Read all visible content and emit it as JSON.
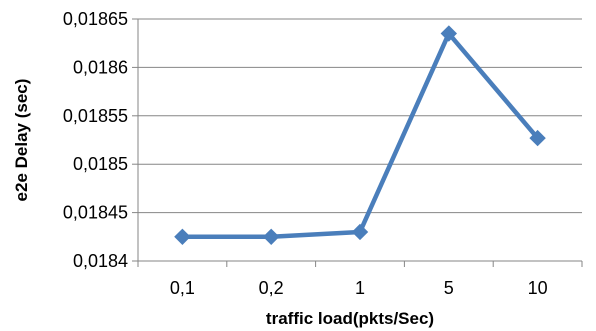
{
  "chart_data": {
    "type": "line",
    "title": "",
    "xlabel": "traffic load(pkts/Sec)",
    "ylabel": "e2e Delay (sec)",
    "categories": [
      "0,1",
      "0,2",
      "1",
      "5",
      "10"
    ],
    "series": [
      {
        "values": [
          0.018425,
          0.018425,
          0.01843,
          0.018635,
          0.018527
        ]
      }
    ],
    "ylim": [
      0.0184,
      0.01865
    ],
    "yticks": [
      0.0184,
      0.01845,
      0.0185,
      0.01855,
      0.0186,
      0.01865
    ],
    "ytick_labels": [
      "0,0184",
      "0,01845",
      "0,0185",
      "0,01855",
      "0,0186",
      "0,01865"
    ],
    "grid": "horizontal",
    "legend": "none",
    "colors": {
      "series": "#4a7ebb",
      "grid": "#868686",
      "axis": "#868686"
    }
  }
}
